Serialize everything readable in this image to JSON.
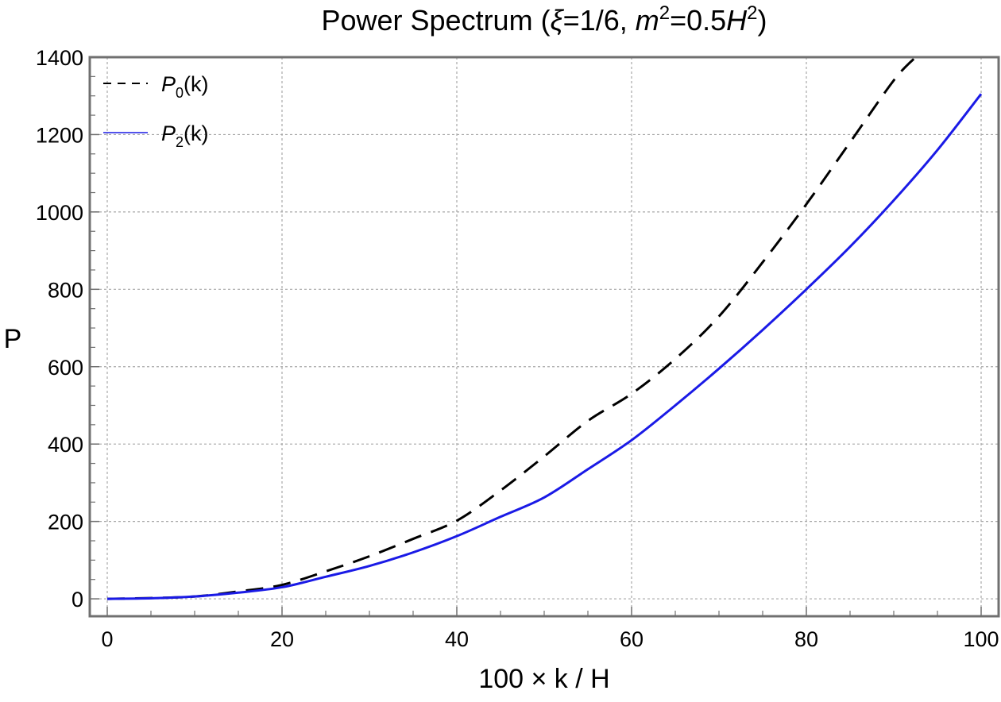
{
  "chart_data": {
    "type": "line",
    "title": {
      "prefix": "Power Spectrum (",
      "xi_symbol": "ξ",
      "xi_value": "=1/6, ",
      "m_symbol": "m",
      "m_exp": "2",
      "m_value": "=0.5",
      "h_symbol": "H",
      "h_exp": "2",
      "suffix": ")"
    },
    "xlabel": "100 × k / H",
    "ylabel": "P",
    "xlim": [
      -2,
      102
    ],
    "ylim": [
      -45,
      1400
    ],
    "xticks": [
      0,
      20,
      40,
      60,
      80,
      100
    ],
    "yticks": [
      0,
      200,
      400,
      600,
      800,
      1000,
      1200,
      1400
    ],
    "grid": true,
    "legend_position": "top-left",
    "series": [
      {
        "name_symbol": "P",
        "name_sub": "0",
        "name_suffix": "(k)",
        "color": "#000000",
        "dash": "dashed",
        "x": [
          0,
          5,
          10,
          15,
          20,
          25,
          30,
          35,
          40,
          45,
          50,
          55,
          60,
          65,
          70,
          75,
          80,
          85,
          90,
          92.5
        ],
        "y": [
          0,
          2,
          6,
          19,
          36,
          71,
          110,
          155,
          202,
          280,
          368,
          460,
          530,
          620,
          730,
          870,
          1020,
          1180,
          1340,
          1400
        ]
      },
      {
        "name_symbol": "P",
        "name_sub": "2",
        "name_suffix": "(k)",
        "color": "#1a1ae6",
        "dash": "solid",
        "x": [
          0,
          5,
          10,
          15,
          20,
          25,
          30,
          35,
          40,
          45,
          50,
          55,
          60,
          65,
          70,
          75,
          80,
          85,
          90,
          95,
          100
        ],
        "y": [
          0,
          1.5,
          6,
          16,
          30,
          57,
          85,
          120,
          162,
          212,
          262,
          335,
          410,
          500,
          595,
          695,
          800,
          910,
          1030,
          1160,
          1305
        ]
      }
    ]
  }
}
